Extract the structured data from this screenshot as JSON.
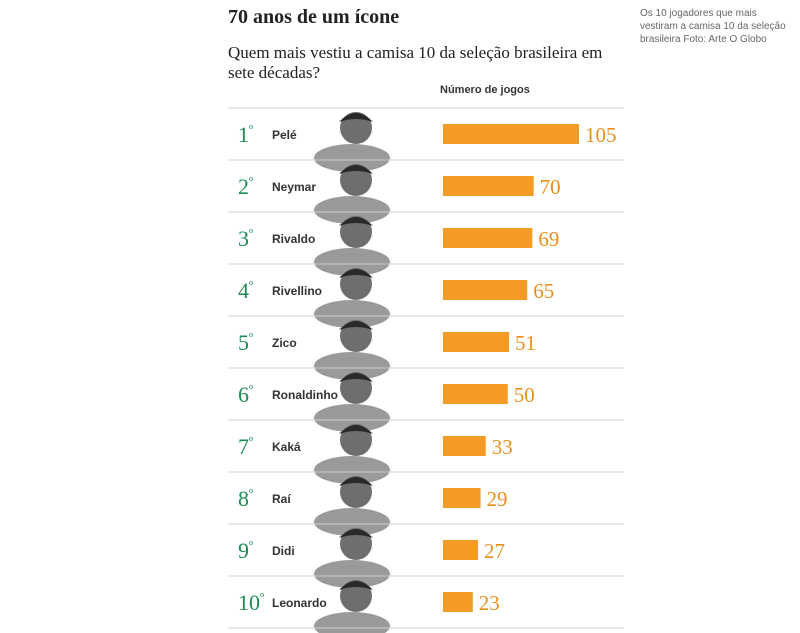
{
  "header": {
    "title": "70 anos de um ícone",
    "subtitle": "Quem mais vestiu a camisa 10 da seleção brasileira em sete décadas?",
    "column_label": "Número de jogos"
  },
  "caption": "Os 10 jogadores que mais vestiram a camisa 10 da seleção brasileira Foto: Arte O Globo",
  "colors": {
    "bar": "#f59a24",
    "value": "#e8901c",
    "rank": "#1f8a55",
    "divider": "#cfcfcf"
  },
  "chart_data": {
    "type": "bar",
    "orientation": "horizontal",
    "ranks": [
      "1º",
      "2º",
      "3º",
      "4º",
      "5º",
      "6º",
      "7º",
      "8º",
      "9º",
      "10º"
    ],
    "categories": [
      "Pelé",
      "Neymar",
      "Rivaldo",
      "Rivellino",
      "Zico",
      "Ronaldinho",
      "Kaká",
      "Raí",
      "Didi",
      "Leonardo"
    ],
    "values": [
      105,
      70,
      69,
      65,
      51,
      50,
      33,
      29,
      27,
      23
    ],
    "value_labels": [
      "105",
      "70",
      "69",
      "65",
      "51",
      "50",
      "33",
      "29",
      "27",
      "23"
    ],
    "xlim": [
      0,
      105
    ]
  }
}
